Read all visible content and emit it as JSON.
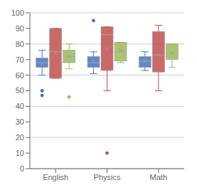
{
  "chart_data": {
    "type": "box",
    "categories": [
      "English",
      "Physics",
      "Math"
    ],
    "series": [
      {
        "color": "#4472C4",
        "values": [
          {
            "q1": 65,
            "median": 68,
            "q3": 71,
            "whislo": 60,
            "whishi": 76,
            "mean": 67,
            "fliers": [
              50,
              47
            ]
          },
          {
            "q1": 65,
            "median": 68,
            "q3": 72,
            "whislo": 61,
            "whishi": 75,
            "mean": 69,
            "fliers": [
              95
            ]
          },
          {
            "q1": 65,
            "median": 69,
            "q3": 72,
            "whislo": 63,
            "whishi": 75,
            "mean": 69,
            "fliers": []
          }
        ]
      },
      {
        "color": "#C0504D",
        "values": [
          {
            "q1": 58,
            "median": 75,
            "q3": 90,
            "whislo": 58,
            "whishi": 90,
            "mean": 74,
            "fliers": []
          },
          {
            "q1": 63,
            "median": 86,
            "q3": 91,
            "whislo": 50,
            "whishi": 91,
            "mean": 77,
            "fliers": [
              10
            ]
          },
          {
            "q1": 62,
            "median": 73,
            "q3": 88,
            "whislo": 50,
            "whishi": 92,
            "mean": 73,
            "fliers": []
          }
        ]
      },
      {
        "color": "#9BBB59",
        "values": [
          {
            "q1": 68,
            "median": 72,
            "q3": 76,
            "whislo": 64,
            "whishi": 80,
            "mean": 72,
            "fliers": [
              46
            ]
          },
          {
            "q1": 69,
            "median": 75,
            "q3": 81,
            "whislo": 68,
            "whishi": 81,
            "mean": 76,
            "fliers": []
          },
          {
            "q1": 70,
            "median": 74,
            "q3": 80,
            "whislo": 65,
            "whishi": 80,
            "mean": 74,
            "fliers": []
          }
        ]
      }
    ],
    "ylim": [
      0,
      100
    ],
    "yticks": [
      0,
      10,
      20,
      30,
      40,
      50,
      60,
      70,
      80,
      90,
      100
    ],
    "grid": true
  }
}
